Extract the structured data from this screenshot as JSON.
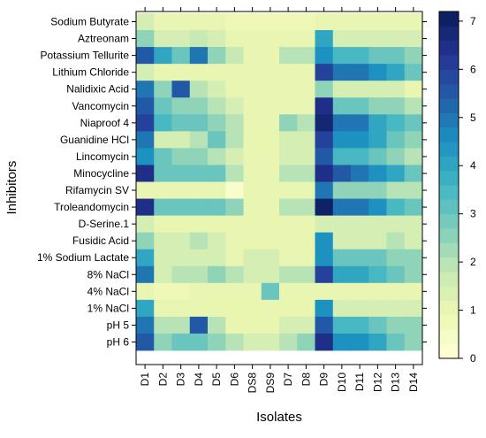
{
  "chart_data": {
    "type": "heatmap",
    "xlabel": "Isolates",
    "ylabel": "Inhibitors",
    "x_categories": [
      "D1",
      "D2",
      "D3",
      "D4",
      "D5",
      "D6",
      "DS8",
      "DS9",
      "D7",
      "D8",
      "D9",
      "D10",
      "D11",
      "D12",
      "D13",
      "D14"
    ],
    "y_categories": [
      "Sodium Butyrate",
      "Aztreonam",
      "Potassium Tellurite",
      "Lithium Chloride",
      "Nalidixic Acid",
      "Vancomycin",
      "Niaproof 4",
      "Guanidine HCl",
      "Lincomycin",
      "Minocycline",
      "Rifamycin SV",
      "Troleandomycin",
      "D-Serine.1",
      "Fusidic Acid",
      "1% Sodium Lactate",
      "8% NaCl",
      "4% NaCl",
      "1% NaCl",
      "pH 5",
      "pH 6"
    ],
    "values": [
      [
        1.5,
        1.0,
        1.0,
        1.0,
        1.0,
        0.8,
        0.8,
        0.8,
        0.8,
        0.8,
        1.0,
        1.0,
        1.0,
        1.0,
        1.0,
        1.0
      ],
      [
        2.5,
        1.5,
        1.5,
        1.8,
        1.5,
        1.0,
        1.0,
        1.0,
        1.0,
        1.0,
        4.0,
        1.5,
        1.5,
        1.5,
        1.5,
        1.5
      ],
      [
        5.5,
        4.0,
        3.0,
        5.0,
        2.5,
        1.8,
        1.0,
        1.0,
        2.0,
        2.0,
        4.5,
        3.5,
        3.5,
        3.0,
        3.0,
        2.5
      ],
      [
        1.5,
        1.0,
        1.0,
        1.0,
        1.0,
        1.0,
        1.0,
        1.0,
        1.0,
        1.0,
        6.0,
        5.0,
        5.0,
        4.5,
        4.0,
        3.0
      ],
      [
        5.0,
        2.5,
        5.5,
        2.0,
        1.5,
        1.0,
        1.0,
        1.0,
        1.0,
        1.0,
        2.5,
        1.5,
        1.5,
        1.5,
        1.5,
        1.0
      ],
      [
        5.5,
        3.0,
        2.5,
        2.5,
        2.0,
        1.5,
        1.0,
        1.0,
        1.0,
        1.0,
        6.5,
        3.0,
        3.0,
        2.5,
        2.5,
        2.0
      ],
      [
        6.0,
        3.5,
        3.0,
        3.0,
        2.5,
        2.0,
        1.0,
        1.0,
        2.5,
        2.0,
        6.8,
        5.0,
        5.0,
        4.0,
        3.5,
        3.0
      ],
      [
        5.0,
        1.5,
        1.5,
        2.0,
        3.0,
        2.0,
        1.0,
        1.0,
        1.5,
        1.5,
        6.0,
        4.5,
        4.5,
        4.0,
        3.0,
        2.5
      ],
      [
        4.5,
        3.0,
        2.5,
        2.5,
        2.0,
        1.5,
        1.0,
        1.0,
        1.5,
        1.5,
        5.5,
        3.5,
        3.5,
        3.0,
        2.5,
        2.0
      ],
      [
        6.5,
        3.0,
        3.0,
        3.0,
        3.0,
        2.0,
        1.0,
        1.0,
        2.0,
        2.0,
        6.5,
        5.5,
        5.0,
        4.5,
        4.0,
        3.0
      ],
      [
        1.0,
        1.0,
        1.0,
        1.0,
        1.0,
        0.3,
        1.0,
        1.0,
        1.0,
        1.0,
        5.0,
        2.5,
        2.5,
        2.5,
        2.0,
        2.0
      ],
      [
        6.5,
        3.0,
        3.0,
        3.0,
        3.0,
        2.5,
        1.0,
        1.0,
        2.0,
        2.0,
        7.0,
        5.0,
        5.0,
        4.5,
        3.5,
        3.0
      ],
      [
        1.5,
        1.0,
        1.0,
        1.0,
        1.0,
        1.0,
        1.0,
        1.0,
        1.0,
        1.0,
        1.5,
        1.5,
        1.5,
        1.5,
        1.5,
        1.5
      ],
      [
        2.5,
        1.5,
        1.5,
        2.0,
        1.5,
        1.0,
        1.0,
        1.0,
        1.0,
        1.0,
        4.5,
        1.5,
        1.5,
        1.5,
        2.0,
        1.5
      ],
      [
        4.0,
        1.5,
        1.5,
        1.5,
        1.5,
        1.0,
        1.5,
        1.5,
        1.0,
        1.0,
        4.5,
        3.0,
        3.0,
        3.0,
        2.5,
        2.5
      ],
      [
        5.0,
        1.5,
        2.0,
        2.0,
        2.5,
        2.0,
        1.5,
        1.5,
        2.0,
        2.0,
        6.0,
        4.0,
        4.0,
        3.5,
        3.0,
        2.5
      ],
      [
        1.0,
        0.8,
        0.8,
        1.0,
        1.0,
        1.0,
        1.0,
        3.0,
        1.0,
        1.0,
        1.0,
        1.0,
        1.0,
        1.0,
        1.0,
        1.0
      ],
      [
        4.0,
        1.0,
        1.0,
        1.0,
        1.0,
        1.0,
        1.0,
        1.0,
        1.0,
        1.0,
        4.5,
        1.5,
        1.5,
        1.5,
        1.5,
        1.5
      ],
      [
        5.0,
        2.0,
        2.0,
        5.5,
        2.0,
        1.0,
        1.0,
        1.0,
        1.5,
        1.5,
        5.5,
        3.5,
        3.5,
        3.0,
        2.5,
        2.5
      ],
      [
        5.5,
        2.5,
        3.0,
        3.0,
        2.5,
        2.0,
        1.5,
        1.5,
        2.0,
        2.5,
        6.5,
        4.5,
        4.5,
        4.0,
        3.0,
        2.5
      ]
    ],
    "colorbar": {
      "min": 0,
      "max": 7.2,
      "ticks": [
        0,
        1,
        2,
        3,
        4,
        5,
        6,
        7
      ]
    },
    "colorscale": [
      "#ffffd9",
      "#edf8b1",
      "#c7e9b4",
      "#7fcdbb",
      "#41b6c4",
      "#1d91c0",
      "#225ea8",
      "#253494",
      "#081d58"
    ],
    "legend_placement": "right"
  }
}
